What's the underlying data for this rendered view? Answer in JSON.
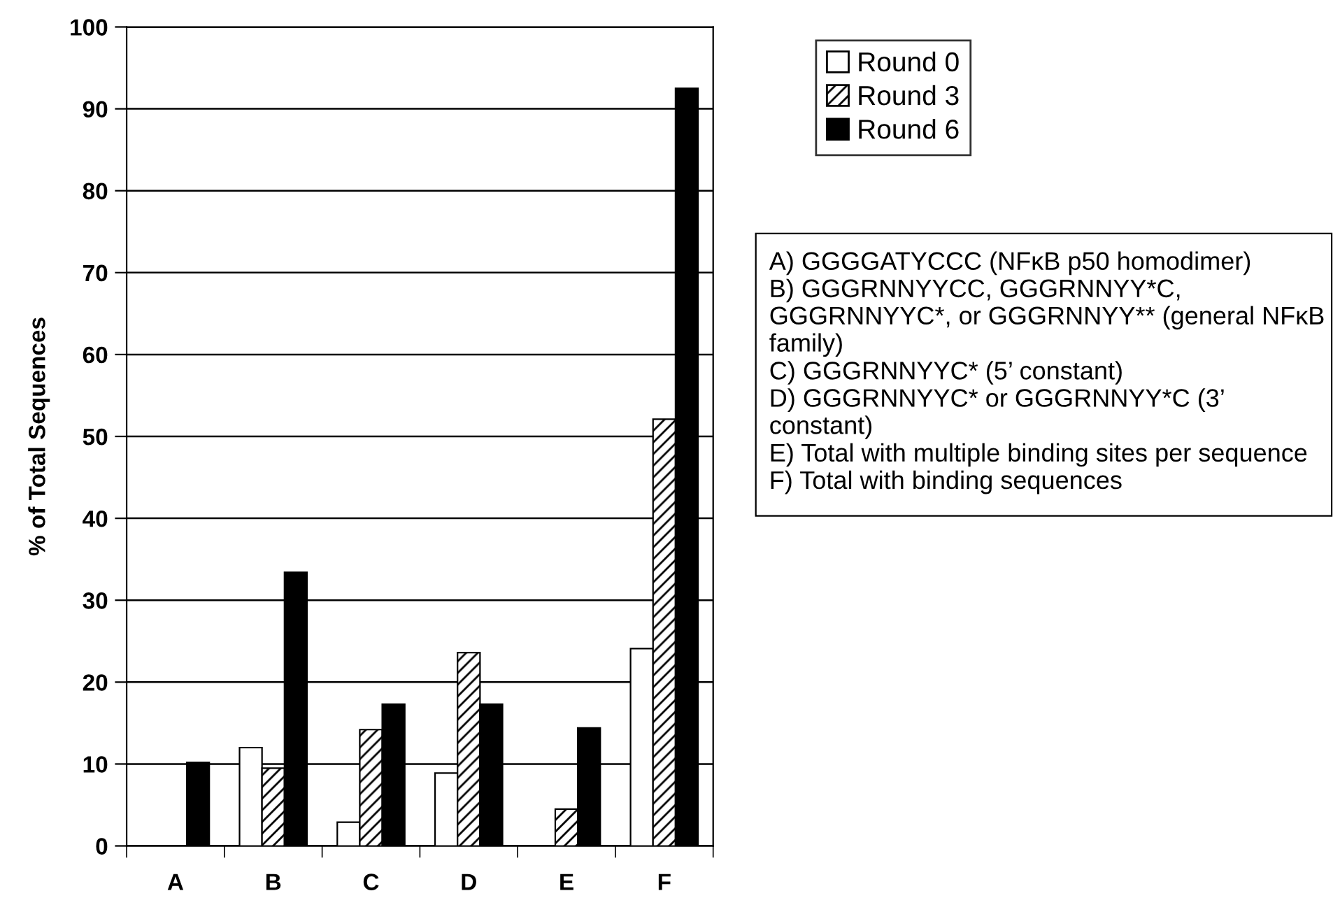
{
  "chart_data": {
    "type": "bar",
    "ylabel": "% of Total Sequences",
    "categories": [
      "A",
      "B",
      "C",
      "D",
      "E",
      "F"
    ],
    "series": [
      {
        "name": "Round 0",
        "color": "#ffffff",
        "values": [
          0,
          12,
          2.9,
          8.9,
          0,
          24.1
        ]
      },
      {
        "name": "Round 3",
        "color": "#000000",
        "values": [
          0,
          9.5,
          14.2,
          23.6,
          4.5,
          52.1
        ]
      },
      {
        "name": "Round 6",
        "color": "#000000",
        "values": [
          10.2,
          33.4,
          17.3,
          17.3,
          14.4,
          92.5
        ]
      }
    ],
    "ylim": [
      0,
      100
    ],
    "yticks": [
      0,
      10,
      20,
      30,
      40,
      50,
      60,
      70,
      80,
      90,
      100
    ],
    "grid": "y",
    "legend": "top right",
    "annotations": [
      "A) GGGGATYCCC (NFκB p50 homodimer)",
      "B) GGGRNNYYCC, GGGRNNYY*C, GGGRNNYYC*, or GGGRNNYY** (general NFκB family)",
      "C) GGGRNNYYC* (5’ constant)",
      "D) GGGRNNYYC* or GGGRNNYY*C (3’ constant)",
      "E) Total with multiple binding sites per sequence",
      "F) Total with binding sequences"
    ]
  }
}
